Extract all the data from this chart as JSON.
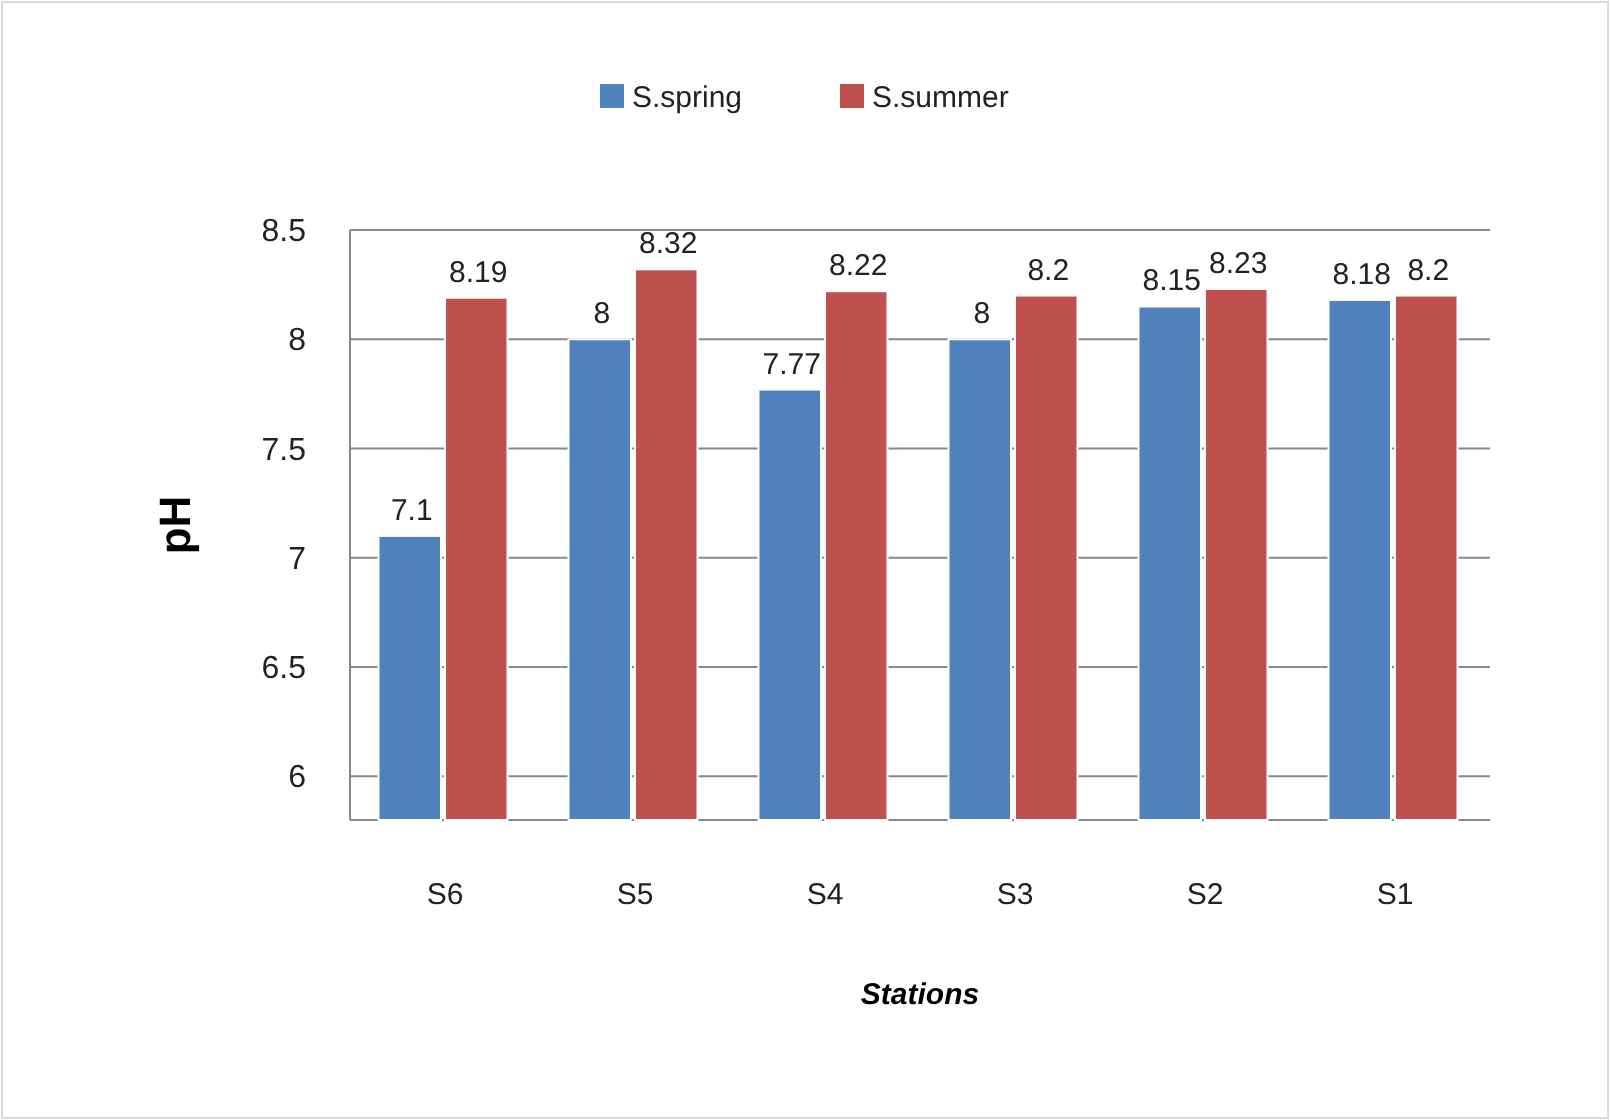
{
  "chart_data": {
    "type": "bar",
    "xlabel": "Stations",
    "ylabel": "pH",
    "categories": [
      "S6",
      "S5",
      "S4",
      "S3",
      "S2",
      "S1"
    ],
    "series": [
      {
        "name": "S.spring",
        "color": "#4f81bd",
        "values": [
          7.1,
          8,
          7.77,
          8,
          8.15,
          8.18
        ]
      },
      {
        "name": "S.summer",
        "color": "#c0504d",
        "values": [
          8.19,
          8.32,
          8.22,
          8.2,
          8.23,
          8.2
        ]
      }
    ],
    "ylim": [
      5.8,
      8.5
    ],
    "yticks": [
      6,
      6.5,
      7,
      7.5,
      8,
      8.5
    ],
    "grid": "y",
    "legend": "top",
    "data_labels": true
  }
}
